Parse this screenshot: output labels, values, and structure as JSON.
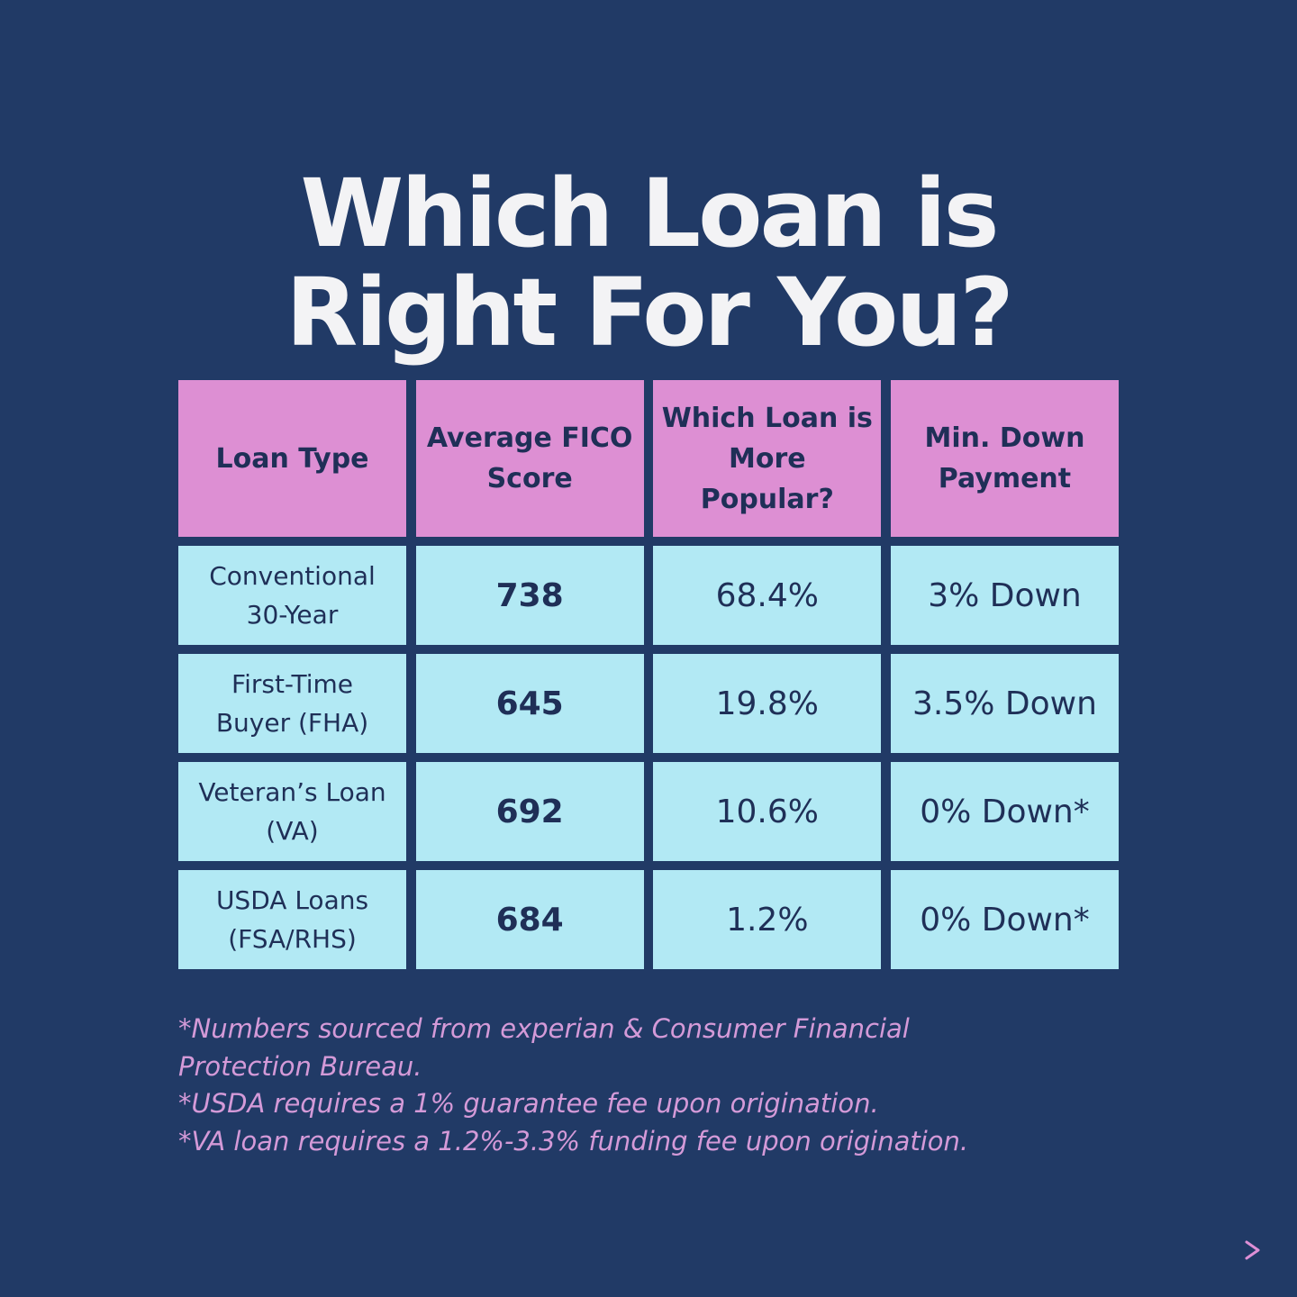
{
  "title": {
    "line1": "Which Loan is",
    "line2": "Right For You?"
  },
  "table": {
    "headers": [
      [
        "Loan Type"
      ],
      [
        "Average FICO",
        "Score"
      ],
      [
        "Which Loan is",
        "More",
        "Popular?"
      ],
      [
        "Min. Down",
        "Payment"
      ]
    ],
    "rows": [
      {
        "type": [
          "Conventional",
          "30-Year"
        ],
        "fico": "738",
        "popular": "68.4%",
        "down": "3% Down"
      },
      {
        "type": [
          "First-Time",
          "Buyer (FHA)"
        ],
        "fico": "645",
        "popular": "19.8%",
        "down": "3.5% Down"
      },
      {
        "type": [
          "Veteran’s Loan",
          "(VA)"
        ],
        "fico": "692",
        "popular": "10.6%",
        "down": "0% Down*"
      },
      {
        "type": [
          "USDA Loans",
          "(FSA/RHS)"
        ],
        "fico": "684",
        "popular": "1.2%",
        "down": "0% Down*"
      }
    ]
  },
  "notes": [
    "*Numbers sourced from experian & Consumer Financial Protection Bureau.",
    "*USDA requires a 1% guarantee fee upon origination.",
    "*VA loan requires a 1.2%-3.3% funding fee upon origination."
  ],
  "colors": {
    "background": "#213a66",
    "header_cell": "#dd8fd3",
    "body_cell": "#b2e9f4",
    "notes_text": "#d49ad8",
    "title_text": "#f3f3f5"
  },
  "icons": {
    "next": "arrow-right-icon"
  }
}
